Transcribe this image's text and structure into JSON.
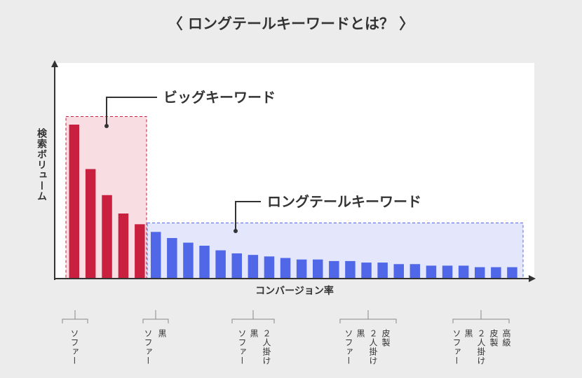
{
  "title": "〈 ロングテールキーワードとは？ 〉",
  "chart_data": {
    "type": "bar",
    "xlabel": "コンバージョン率",
    "ylabel": "検索ボリューム",
    "series": [
      {
        "name": "ビッグキーワード",
        "color": "#c8203e",
        "values": [
          100,
          71,
          54,
          42,
          35
        ]
      },
      {
        "name": "ロングテールキーワード",
        "color": "#5068e8",
        "values": [
          30,
          26,
          23,
          21,
          18,
          16,
          15,
          14,
          13,
          12,
          12,
          11,
          11,
          10,
          10,
          9,
          9,
          8,
          8,
          8,
          7,
          7,
          7
        ]
      }
    ]
  },
  "keyword_examples": [
    {
      "words": [
        "ソファー"
      ]
    },
    {
      "words": [
        "ソファー",
        "黒"
      ]
    },
    {
      "words": [
        "ソファー",
        "黒",
        "２人掛け"
      ]
    },
    {
      "words": [
        "ソファー",
        "黒",
        "２人掛け",
        "皮製"
      ]
    },
    {
      "words": [
        "ソファー",
        "黒",
        "２人掛け",
        "皮製",
        "高級"
      ]
    }
  ]
}
